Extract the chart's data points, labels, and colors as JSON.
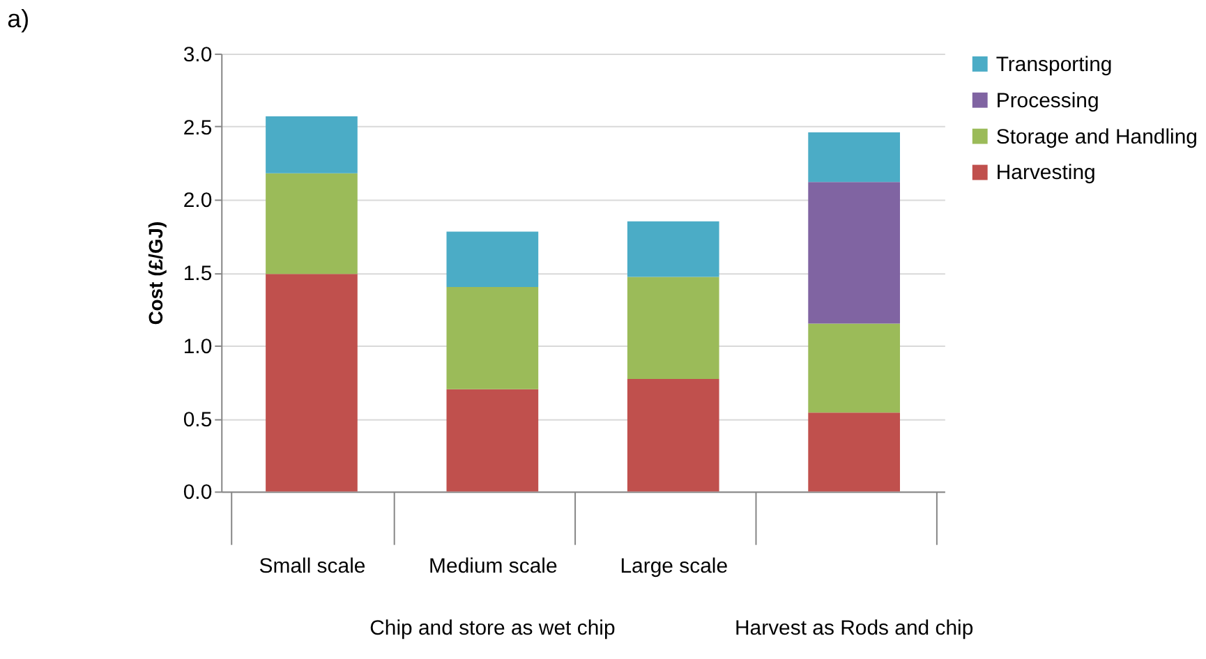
{
  "chart_data": {
    "type": "bar",
    "title": "a)",
    "ylabel": "Cost (£/GJ)",
    "categories": [
      "Small scale",
      "Medium scale",
      "Large scale",
      null
    ],
    "stacked": true,
    "series": [
      {
        "name": "Harvesting",
        "color": "#c0504d",
        "values": [
          1.49,
          0.7,
          0.77,
          0.54
        ]
      },
      {
        "name": "Storage and Handling",
        "color": "#9bbb59",
        "values": [
          0.69,
          0.7,
          0.7,
          0.61
        ]
      },
      {
        "name": "Processing",
        "color": "#8064a2",
        "values": [
          0,
          0,
          0,
          0.97
        ]
      },
      {
        "name": "Transporting",
        "color": "#4bacc6",
        "values": [
          0.39,
          0.38,
          0.38,
          0.34
        ]
      }
    ],
    "ylim": [
      0,
      3.0
    ],
    "yticks": [
      {
        "value": 0,
        "label": "0.0"
      },
      0.5,
      {
        "value": 1,
        "label": "1.0"
      },
      1.5,
      {
        "value": 2,
        "label": "2.0"
      },
      2.5,
      {
        "value": 3,
        "label": "3.0"
      }
    ],
    "grid": "y",
    "legend": "right",
    "annotations": [
      "Chip and store as wet chip",
      "Harvest as Rods and chip"
    ]
  }
}
